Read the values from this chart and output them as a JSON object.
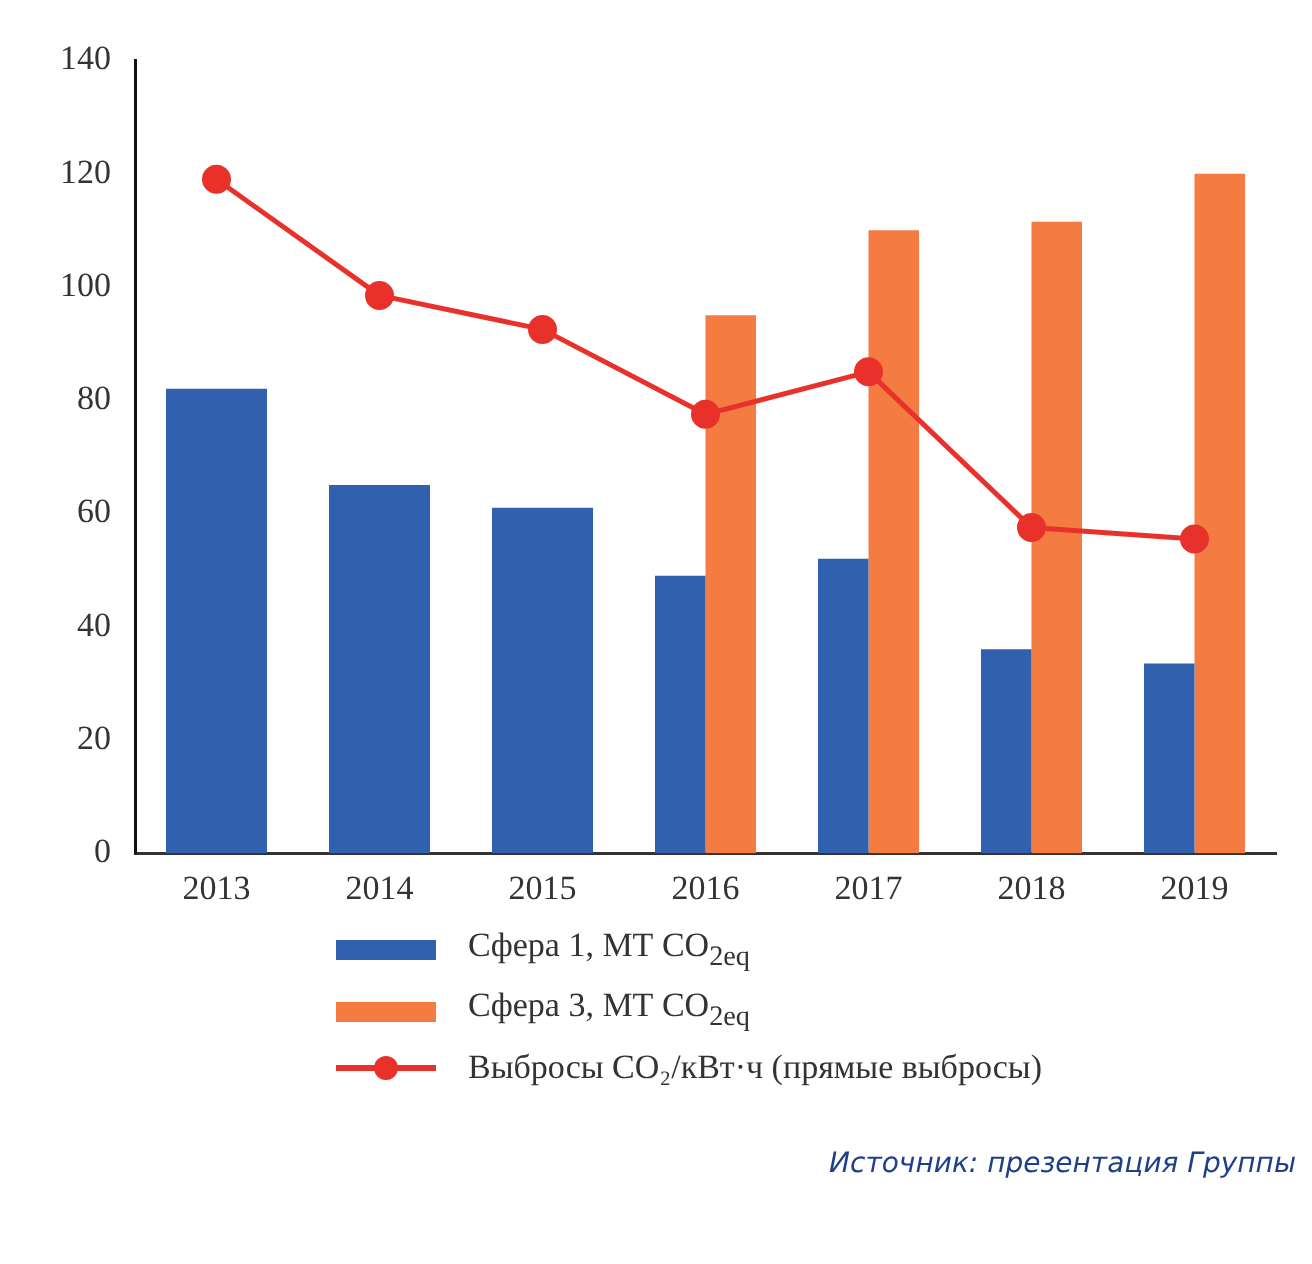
{
  "chart_data": {
    "type": "bar",
    "categories": [
      "2013",
      "2014",
      "2015",
      "2016",
      "2017",
      "2018",
      "2019"
    ],
    "series": [
      {
        "name": "Сфера 1, МТ CO$_{2eq}$",
        "color": "#3060ae",
        "values": [
          82,
          65,
          61,
          49,
          52,
          36,
          33.5
        ]
      },
      {
        "name": "Сфера 3, МТ CO$_{2eq}$",
        "color": "#f47b42",
        "values": [
          null,
          null,
          null,
          95,
          110,
          111.5,
          120
        ]
      },
      {
        "name": "Выбросы CO₂/кВт·ч (прямые выбросы)",
        "type": "line",
        "color": "#e8312a",
        "marker": "circle",
        "line_style": "solid",
        "values": [
          119,
          98.5,
          92.5,
          77.5,
          85,
          57.5,
          55.5
        ]
      }
    ],
    "ylim": [
      0,
      140
    ],
    "yticks": [
      0,
      20,
      40,
      60,
      80,
      100,
      120,
      140
    ],
    "grid": false,
    "legend": "bottom",
    "annotations": [
      "Источник: презентация Группы"
    ]
  }
}
